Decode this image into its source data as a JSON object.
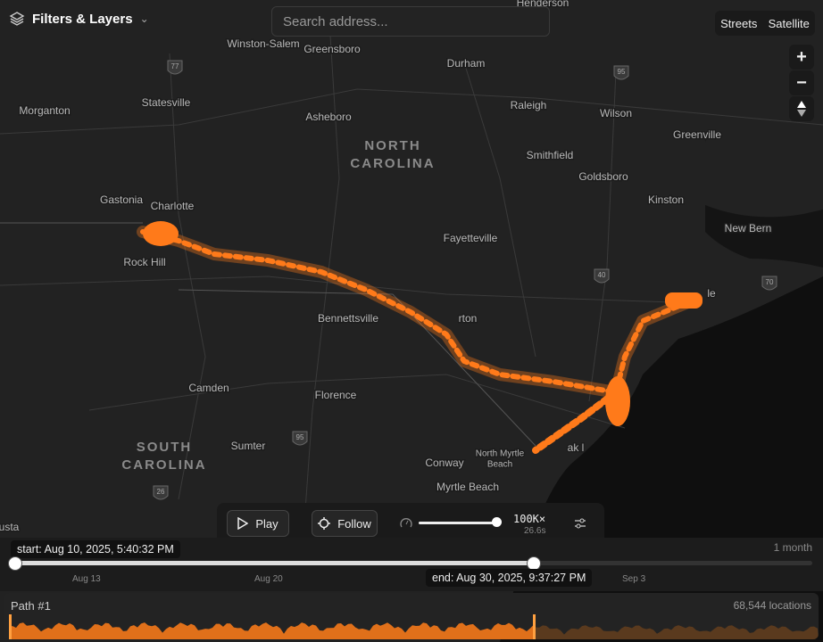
{
  "toolbar": {
    "title": "Filters & Layers",
    "search_placeholder": "Search address..."
  },
  "map_style": [
    "Streets",
    "Satellite"
  ],
  "zoom": [
    "+",
    "−"
  ],
  "map_labels": [
    "Henderson",
    "Winston-Salem",
    "Greensboro",
    "Durham",
    "Morganton",
    "Statesville",
    "Asheboro",
    "Raleigh",
    "Wilson",
    "Greenville",
    "Smithfield",
    "Goldsboro",
    "Kinston",
    "Gastonia",
    "Charlotte",
    "New Bern",
    "Fayetteville",
    "Rock Hill",
    "Bennettsville",
    "rton",
    "le",
    "Camden",
    "Florence",
    "Sumter",
    "North Myrtle",
    "Beach",
    "ak l",
    "Conway",
    "Myrtle Beach",
    "usta"
  ],
  "states": [
    "NORTH",
    "CAROLINA",
    "SOUTH",
    "CAROLINA"
  ],
  "highways": [
    "77",
    "95",
    "40",
    "70",
    "95",
    "26"
  ],
  "playback": {
    "play": "Play",
    "follow": "Follow",
    "speed": "100K×",
    "duration": "26.6s"
  },
  "timeline": {
    "start": "start: Aug 10, 2025, 5:40:32 PM",
    "range": "1 month",
    "end": "end: Aug 30, 2025, 9:37:27 PM",
    "ticks": [
      "Aug 13",
      "Aug 20",
      "Sep 3"
    ]
  },
  "track": {
    "name": "Path #1",
    "count": "68,544 locations"
  }
}
